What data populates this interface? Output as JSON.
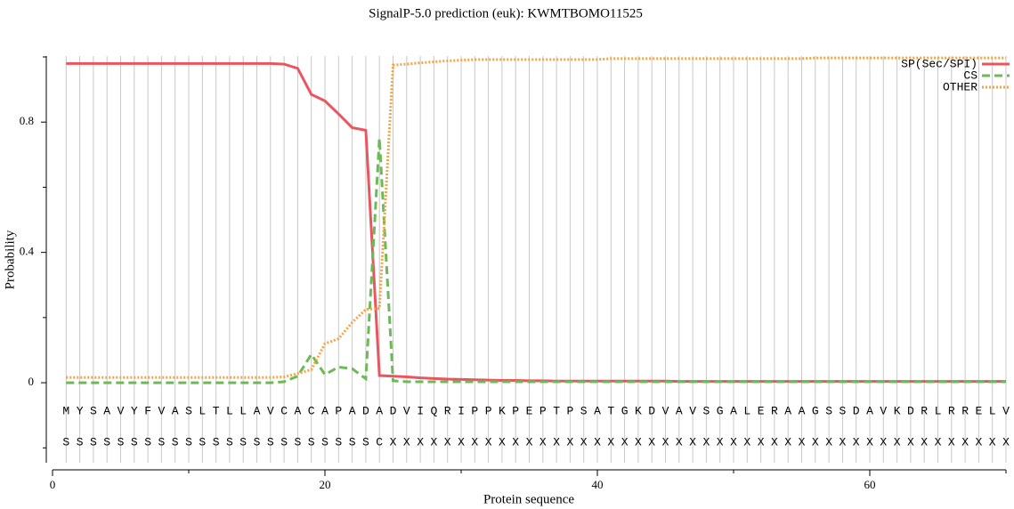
{
  "chart_data": {
    "type": "line",
    "title": "SignalP-5.0 prediction (euk):  KWMTBOMO11525",
    "x_label": "Protein sequence",
    "y_label": "Probability",
    "xlim": [
      0,
      70
    ],
    "xticks": [
      0,
      20,
      40,
      60
    ],
    "minor_xticks": [
      10,
      30,
      50,
      70
    ],
    "ylim": [
      -0.25,
      1.0
    ],
    "yticks": [
      0,
      0.4,
      0.8
    ],
    "minor_yticks": [
      -0.2,
      0.2,
      0.6,
      1.0
    ],
    "grid": true,
    "legend": "upper right",
    "x": [
      1,
      2,
      3,
      4,
      5,
      6,
      7,
      8,
      9,
      10,
      11,
      12,
      13,
      14,
      15,
      16,
      17,
      18,
      19,
      20,
      21,
      22,
      23,
      24,
      25,
      26,
      27,
      28,
      29,
      30,
      31,
      32,
      33,
      34,
      35,
      36,
      37,
      38,
      39,
      40,
      41,
      42,
      43,
      44,
      45,
      46,
      47,
      48,
      49,
      50,
      51,
      52,
      53,
      54,
      55,
      56,
      57,
      58,
      59,
      60,
      61,
      62,
      63,
      64,
      65,
      66,
      67,
      68,
      69,
      70
    ],
    "sequence": [
      "M",
      "Y",
      "S",
      "A",
      "V",
      "Y",
      "F",
      "V",
      "A",
      "S",
      "L",
      "T",
      "L",
      "L",
      "A",
      "V",
      "C",
      "A",
      "C",
      "A",
      "P",
      "A",
      "D",
      "A",
      "D",
      "V",
      "I",
      "Q",
      "R",
      "I",
      "P",
      "P",
      "K",
      "P",
      "E",
      "P",
      "T",
      "P",
      "S",
      "A",
      "T",
      "G",
      "K",
      "D",
      "V",
      "A",
      "V",
      "S",
      "G",
      "A",
      "L",
      "E",
      "R",
      "A",
      "A",
      "G",
      "S",
      "S",
      "D",
      "A",
      "V",
      "K",
      "D",
      "R",
      "L",
      "R",
      "R",
      "E",
      "L",
      "V"
    ],
    "annotation": [
      "S",
      "S",
      "S",
      "S",
      "S",
      "S",
      "S",
      "S",
      "S",
      "S",
      "S",
      "S",
      "S",
      "S",
      "S",
      "S",
      "S",
      "S",
      "S",
      "S",
      "S",
      "S",
      "S",
      "C",
      "X",
      "X",
      "X",
      "X",
      "X",
      "X",
      "X",
      "X",
      "X",
      "X",
      "X",
      "X",
      "X",
      "X",
      "X",
      "X",
      "X",
      "X",
      "X",
      "X",
      "X",
      "X",
      "X",
      "X",
      "X",
      "X",
      "X",
      "X",
      "X",
      "X",
      "X",
      "X",
      "X",
      "X",
      "X",
      "X",
      "X",
      "X",
      "X",
      "X",
      "X",
      "X",
      "X",
      "X",
      "X",
      "X"
    ],
    "series": [
      {
        "name": "SP(Sec/SPI)",
        "color": "#e8575f",
        "dash": "",
        "values": [
          0.98,
          0.98,
          0.98,
          0.98,
          0.98,
          0.98,
          0.98,
          0.98,
          0.98,
          0.98,
          0.98,
          0.98,
          0.98,
          0.98,
          0.98,
          0.98,
          0.978,
          0.965,
          0.885,
          0.865,
          0.825,
          0.783,
          0.775,
          0.022,
          0.02,
          0.018,
          0.015,
          0.013,
          0.011,
          0.01,
          0.009,
          0.008,
          0.007,
          0.007,
          0.006,
          0.006,
          0.005,
          0.005,
          0.005,
          0.005,
          0.005,
          0.005,
          0.005,
          0.005,
          0.005,
          0.004,
          0.004,
          0.004,
          0.004,
          0.004,
          0.004,
          0.004,
          0.004,
          0.004,
          0.004,
          0.004,
          0.004,
          0.004,
          0.004,
          0.004,
          0.004,
          0.004,
          0.004,
          0.004,
          0.004,
          0.004,
          0.004,
          0.004,
          0.004,
          0.004
        ]
      },
      {
        "name": "CS",
        "color": "#6cba55",
        "dash": "9,5",
        "values": [
          0,
          0,
          0,
          0,
          0,
          0,
          0,
          0,
          0,
          0,
          0,
          0,
          0,
          0,
          0,
          0,
          0.003,
          0.02,
          0.087,
          0.025,
          0.048,
          0.043,
          0.012,
          0.75,
          0.006,
          0.003,
          0.003,
          0.003,
          0.003,
          0.003,
          0.003,
          0.003,
          0.003,
          0.003,
          0.003,
          0.003,
          0.003,
          0.003,
          0.003,
          0.003,
          0.003,
          0.003,
          0.003,
          0.003,
          0.003,
          0.003,
          0.003,
          0.003,
          0.003,
          0.003,
          0.003,
          0.003,
          0.003,
          0.003,
          0.003,
          0.003,
          0.003,
          0.003,
          0.003,
          0.003,
          0.003,
          0.003,
          0.003,
          0.003,
          0.003,
          0.003,
          0.003,
          0.003,
          0.003,
          0.003
        ]
      },
      {
        "name": "OTHER",
        "color": "#f5a445",
        "dash": "2,2",
        "values": [
          0.016,
          0.016,
          0.016,
          0.016,
          0.016,
          0.016,
          0.016,
          0.016,
          0.016,
          0.016,
          0.016,
          0.016,
          0.016,
          0.016,
          0.016,
          0.016,
          0.018,
          0.028,
          0.04,
          0.12,
          0.135,
          0.185,
          0.225,
          0.228,
          0.975,
          0.978,
          0.982,
          0.985,
          0.988,
          0.99,
          0.992,
          0.992,
          0.992,
          0.992,
          0.992,
          0.992,
          0.992,
          0.992,
          0.992,
          0.992,
          0.995,
          0.995,
          0.995,
          0.995,
          0.995,
          0.995,
          0.995,
          0.995,
          0.995,
          0.995,
          0.995,
          0.995,
          0.995,
          0.995,
          0.995,
          0.997,
          0.997,
          0.997,
          0.997,
          0.997,
          0.997,
          0.997,
          0.997,
          0.997,
          0.997,
          0.997,
          0.997,
          0.997,
          0.997,
          0.997
        ]
      }
    ]
  }
}
